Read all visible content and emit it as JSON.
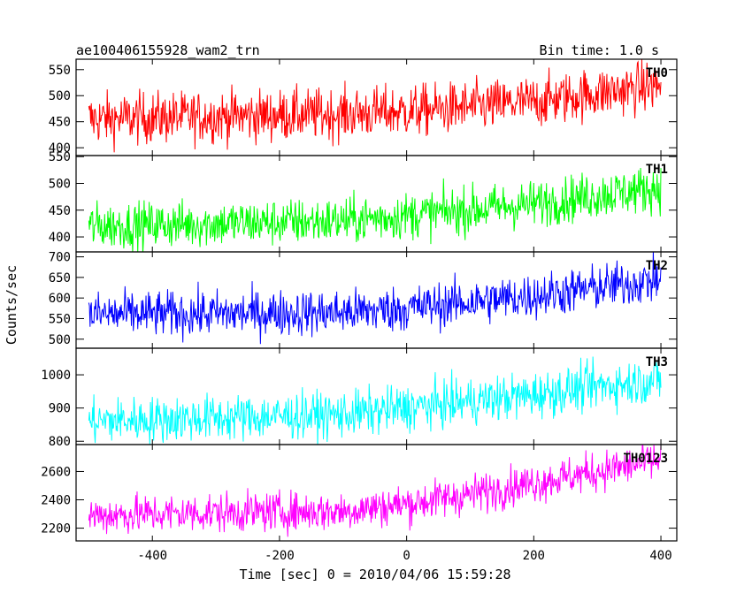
{
  "chart_data": {
    "type": "line",
    "title": "ae100406155928_wam2_trn",
    "subtitle": "Bin time: 1.0 s",
    "xlabel": "Time [sec] 0 = 2010/04/06 15:59:28",
    "ylabel": "Counts/sec",
    "xlim": [
      -520,
      425
    ],
    "x_ticks": [
      -400,
      -200,
      0,
      200,
      400
    ],
    "x_start": -500,
    "x_end": 400,
    "x_step": 1,
    "grid": false,
    "panels": [
      {
        "name": "TH0",
        "color": "#ff0000",
        "ylim": [
          385,
          570
        ],
        "y_ticks": [
          400,
          450,
          500,
          550
        ],
        "trend": [
          [
            -500,
            455
          ],
          [
            -300,
            460
          ],
          [
            -100,
            465
          ],
          [
            0,
            470
          ],
          [
            100,
            478
          ],
          [
            200,
            488
          ],
          [
            300,
            505
          ],
          [
            400,
            520
          ]
        ],
        "noise": 25
      },
      {
        "name": "TH1",
        "color": "#00ff00",
        "ylim": [
          372,
          552
        ],
        "y_ticks": [
          400,
          450,
          500,
          550
        ],
        "trend": [
          [
            -500,
            420
          ],
          [
            -300,
            425
          ],
          [
            -100,
            430
          ],
          [
            0,
            440
          ],
          [
            100,
            450
          ],
          [
            200,
            462
          ],
          [
            300,
            478
          ],
          [
            400,
            492
          ]
        ],
        "noise": 22
      },
      {
        "name": "TH2",
        "color": "#0000ff",
        "ylim": [
          478,
          712
        ],
        "y_ticks": [
          500,
          550,
          600,
          650,
          700
        ],
        "trend": [
          [
            -500,
            560
          ],
          [
            -300,
            562
          ],
          [
            -100,
            565
          ],
          [
            0,
            575
          ],
          [
            100,
            590
          ],
          [
            200,
            605
          ],
          [
            300,
            625
          ],
          [
            400,
            645
          ]
        ],
        "noise": 28
      },
      {
        "name": "TH3",
        "color": "#00ffff",
        "ylim": [
          790,
          1080
        ],
        "y_ticks": [
          800,
          900,
          1000
        ],
        "trend": [
          [
            -500,
            860
          ],
          [
            -300,
            870
          ],
          [
            -100,
            880
          ],
          [
            0,
            900
          ],
          [
            100,
            920
          ],
          [
            200,
            940
          ],
          [
            300,
            965
          ],
          [
            400,
            985
          ]
        ],
        "noise": 35
      },
      {
        "name": "TH0123",
        "color": "#ff00ff",
        "ylim": [
          2110,
          2790
        ],
        "y_ticks": [
          2200,
          2400,
          2600
        ],
        "trend": [
          [
            -500,
            2290
          ],
          [
            -300,
            2310
          ],
          [
            -100,
            2320
          ],
          [
            0,
            2370
          ],
          [
            100,
            2440
          ],
          [
            200,
            2520
          ],
          [
            300,
            2600
          ],
          [
            400,
            2680
          ]
        ],
        "noise": 70
      }
    ]
  }
}
